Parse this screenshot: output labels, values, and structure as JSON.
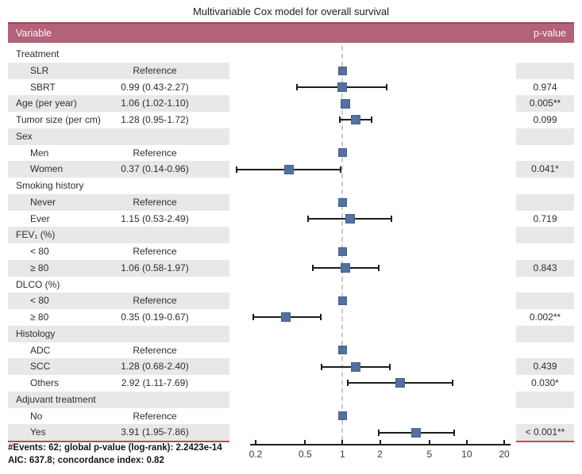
{
  "title": "Multivariable Cox model for overall survival",
  "header": {
    "variable_label": "Variable",
    "pvalue_label": "p-value"
  },
  "footer": {
    "line1": "#Events: 62; global p-value (log-rank): 2.2423e-14",
    "line2": "AIC: 637.8; concordance index: 0.82"
  },
  "colors": {
    "header_bg": "#b2637a",
    "header_top": "#9b4356",
    "stripe": "#e8e8ea",
    "marker": "#53719f",
    "marker_border": "#46628e",
    "accent_line": "#c24850",
    "axis": "#1c1c1c",
    "ref_line": "#c9c9c9"
  },
  "chart_data": {
    "type": "scatter",
    "subtype": "forest-plot",
    "title": "Multivariable Cox model for overall survival",
    "x_scale": "log",
    "x_ticks": [
      0.2,
      0.5,
      1,
      2,
      5,
      10,
      20
    ],
    "xlim": [
      0.13,
      25
    ],
    "reference_line": 1,
    "legend": "none",
    "rows": [
      {
        "label": "Treatment",
        "indent": 0
      },
      {
        "label": "SLR",
        "indent": 1,
        "estimate": "Reference",
        "hr": 1,
        "ref": true
      },
      {
        "label": "SBRT",
        "indent": 1,
        "estimate": "0.99 (0.43-2.27)",
        "p": "0.974",
        "hr": 0.99,
        "lo": 0.43,
        "hi": 2.27
      },
      {
        "label": "Age (per year)",
        "indent": 0,
        "estimate": "1.06 (1.02-1.10)",
        "p": "0.005**",
        "hr": 1.06,
        "lo": 1.02,
        "hi": 1.1
      },
      {
        "label": "Tumor size (per cm)",
        "indent": 0,
        "estimate": "1.28 (0.95-1.72)",
        "p": "0.099",
        "hr": 1.28,
        "lo": 0.95,
        "hi": 1.72
      },
      {
        "label": "Sex",
        "indent": 0
      },
      {
        "label": "Men",
        "indent": 1,
        "estimate": "Reference",
        "hr": 1,
        "ref": true
      },
      {
        "label": "Women",
        "indent": 1,
        "estimate": "0.37 (0.14-0.96)",
        "p": "0.041*",
        "hr": 0.37,
        "lo": 0.14,
        "hi": 0.96
      },
      {
        "label": "Smoking history",
        "indent": 0
      },
      {
        "label": "Never",
        "indent": 1,
        "estimate": "Reference",
        "hr": 1,
        "ref": true
      },
      {
        "label": "Ever",
        "indent": 1,
        "estimate": "1.15 (0.53-2.49)",
        "p": "0.719",
        "hr": 1.15,
        "lo": 0.53,
        "hi": 2.49
      },
      {
        "label": "FEV₁ (%)",
        "indent": 0
      },
      {
        "label": "< 80",
        "indent": 1,
        "estimate": "Reference",
        "hr": 1,
        "ref": true
      },
      {
        "label": "≥ 80",
        "indent": 1,
        "estimate": "1.06 (0.58-1.97)",
        "p": "0.843",
        "hr": 1.06,
        "lo": 0.58,
        "hi": 1.97
      },
      {
        "label": "DLCO (%)",
        "indent": 0
      },
      {
        "label": "< 80",
        "indent": 1,
        "estimate": "Reference",
        "hr": 1,
        "ref": true
      },
      {
        "label": "≥ 80",
        "indent": 1,
        "estimate": "0.35 (0.19-0.67)",
        "p": "0.002**",
        "hr": 0.35,
        "lo": 0.19,
        "hi": 0.67
      },
      {
        "label": "Histology",
        "indent": 0
      },
      {
        "label": "ADC",
        "indent": 1,
        "estimate": "Reference",
        "hr": 1,
        "ref": true
      },
      {
        "label": "SCC",
        "indent": 1,
        "estimate": "1.28 (0.68-2.40)",
        "p": "0.439",
        "hr": 1.28,
        "lo": 0.68,
        "hi": 2.4
      },
      {
        "label": "Others",
        "indent": 1,
        "estimate": "2.92 (1.11-7.69)",
        "p": "0.030*",
        "hr": 2.92,
        "lo": 1.11,
        "hi": 7.69
      },
      {
        "label": "Adjuvant treatment",
        "indent": 0
      },
      {
        "label": "No",
        "indent": 1,
        "estimate": "Reference",
        "hr": 1,
        "ref": true
      },
      {
        "label": "Yes",
        "indent": 1,
        "estimate": "3.91 (1.95-7.86)",
        "p": "< 0.001**",
        "hr": 3.91,
        "lo": 1.95,
        "hi": 7.86
      }
    ]
  }
}
